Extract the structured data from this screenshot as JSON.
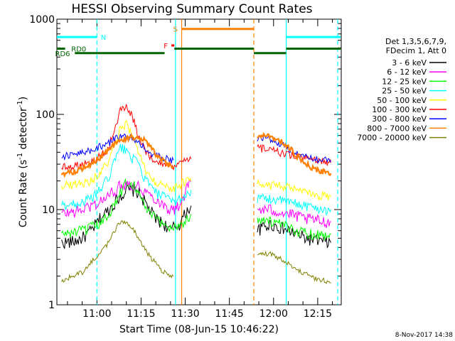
{
  "chart_data": {
    "type": "line",
    "title": "HESSI Observing Summary Count Rates",
    "xlabel": "Start Time (08-Jun-15 10:46:22)",
    "ylabel": "Count Rate (s",
    "ylabel_sup": "-1",
    "ylabel_mid": " detector",
    "ylabel_end": ")",
    "yscale": "log",
    "ylim": [
      1,
      1000
    ],
    "xlim_min": [
      46.4,
      143.0
    ],
    "x_ticks": [
      {
        "min": 60,
        "label": "11:00"
      },
      {
        "min": 75,
        "label": "11:15"
      },
      {
        "min": 90,
        "label": "11:30"
      },
      {
        "min": 105,
        "label": "11:45"
      },
      {
        "min": 120,
        "label": "12:00"
      },
      {
        "min": 135,
        "label": "12:15"
      }
    ],
    "y_ticks": [
      {
        "v": 1,
        "label": "1"
      },
      {
        "v": 10,
        "label": "10"
      },
      {
        "v": 100,
        "label": "100"
      },
      {
        "v": 1000,
        "label": "1000"
      }
    ],
    "legend_header": [
      "Det 1,3,5,6,7,9,",
      "FDecim 1, Att 0"
    ],
    "series": [
      {
        "name": "3 - 6 keV",
        "color": "#000000",
        "x": [
          48,
          52,
          55,
          58,
          61,
          64,
          67,
          70,
          73,
          75,
          77,
          80,
          83,
          85,
          86,
          88,
          89,
          90,
          91,
          92,
          114.5,
          116,
          119,
          122,
          125,
          128,
          131,
          134,
          137,
          139.5
        ],
        "y": [
          4.5,
          4.6,
          5,
          6,
          8,
          10,
          13,
          16,
          16,
          14,
          11,
          8,
          7,
          6,
          6.5,
          7,
          8,
          9,
          10,
          11,
          6,
          6.5,
          7,
          6.5,
          6,
          5.5,
          5,
          4.8,
          4.6,
          4.5
        ]
      },
      {
        "name": "6 - 12 keV",
        "color": "#ff00ff",
        "x": [
          48,
          52,
          55,
          58,
          61,
          64,
          67,
          70,
          73,
          75,
          77,
          80,
          83,
          85,
          86,
          88,
          89,
          90,
          91,
          92,
          114.5,
          116,
          119,
          122,
          125,
          128,
          131,
          134,
          137,
          139.5
        ],
        "y": [
          9,
          9.5,
          10,
          11,
          12,
          14,
          17,
          19,
          18,
          17,
          15,
          13,
          11,
          10,
          10,
          11,
          13,
          15,
          18,
          20,
          10,
          10,
          10,
          9.5,
          9,
          8.5,
          8,
          7.8,
          7.5,
          7.5
        ]
      },
      {
        "name": "12 - 25 keV",
        "color": "#00ff00",
        "x": [
          48,
          52,
          55,
          58,
          61,
          64,
          67,
          70,
          73,
          75,
          77,
          80,
          83,
          85,
          86,
          88,
          89,
          90,
          91,
          92,
          114.5,
          116,
          119,
          122,
          125,
          128,
          131,
          134,
          137,
          139.5
        ],
        "y": [
          5.5,
          5.8,
          6,
          6.5,
          7,
          9,
          13,
          20,
          18,
          13,
          10,
          8,
          7,
          6.5,
          6.5,
          7,
          7,
          7.5,
          8,
          9,
          8,
          8,
          7.5,
          7,
          6.5,
          6,
          5.8,
          5.5,
          5.5,
          5.5
        ]
      },
      {
        "name": "25 - 50 keV",
        "color": "#00ffff",
        "x": [
          48,
          52,
          55,
          58,
          61,
          64,
          66,
          68,
          70,
          72,
          74,
          76,
          78,
          80,
          82,
          84,
          86,
          88,
          89,
          90,
          91,
          92,
          114.5,
          116,
          119,
          122,
          125,
          128,
          131,
          134,
          137,
          139.5
        ],
        "y": [
          11,
          11.5,
          12,
          13,
          16,
          22,
          32,
          45,
          42,
          35,
          30,
          22,
          18,
          15,
          14,
          13,
          12,
          13,
          13,
          14,
          15,
          16,
          13,
          13,
          13,
          12.5,
          12,
          11.5,
          11,
          10.5,
          10,
          10
        ]
      },
      {
        "name": "50 - 100 keV",
        "color": "#ffff00",
        "x": [
          48,
          52,
          55,
          58,
          61,
          64,
          66,
          68,
          70,
          72,
          74,
          76,
          78,
          80,
          82,
          84,
          86,
          88,
          89,
          90,
          91,
          92,
          114.5,
          116,
          119,
          122,
          125,
          128,
          131,
          134,
          137,
          139.5
        ],
        "y": [
          18,
          18.5,
          19,
          20,
          24,
          32,
          45,
          72,
          80,
          62,
          40,
          28,
          22,
          19,
          18,
          17,
          17,
          18,
          19,
          20,
          20,
          20,
          20,
          19,
          18,
          17.5,
          17,
          16,
          15,
          14,
          14,
          13.5
        ]
      },
      {
        "name": "100 - 300 keV",
        "color": "#ff0000",
        "x": [
          48,
          52,
          55,
          58,
          61,
          64,
          66,
          68,
          70,
          72,
          74,
          76,
          78,
          80,
          82,
          84,
          86,
          88,
          89,
          90,
          91,
          92,
          114.5,
          116,
          119,
          122,
          125,
          128,
          131,
          134,
          137,
          139.5
        ],
        "y": [
          28,
          29,
          30,
          32,
          36,
          45,
          70,
          110,
          125,
          95,
          62,
          45,
          36,
          32,
          30,
          29,
          28,
          30,
          31,
          32,
          33,
          34,
          45,
          44,
          42,
          40,
          38,
          36,
          34,
          33,
          32,
          31
        ]
      },
      {
        "name": "300 - 800 keV",
        "color": "#0000ff",
        "x": [
          48,
          52,
          55,
          58,
          61,
          64,
          66,
          68,
          70,
          72,
          74,
          76,
          78,
          80,
          82,
          84,
          86,
          114.5,
          116,
          119,
          122,
          125,
          128,
          131,
          134,
          137,
          139.5
        ],
        "y": [
          36,
          38,
          40,
          42,
          46,
          50,
          55,
          58,
          58,
          56,
          50,
          45,
          40,
          37,
          35,
          34,
          33,
          55,
          58,
          55,
          50,
          44,
          39,
          36,
          34,
          33,
          33
        ]
      },
      {
        "name": "800 - 7000 keV",
        "color": "#ff8000",
        "x": [
          48,
          52,
          55,
          58,
          61,
          64,
          66,
          68,
          70,
          72,
          74,
          76,
          78,
          80,
          82,
          84,
          86,
          114.5,
          116,
          119,
          122,
          125,
          128,
          131,
          134,
          137,
          139.5
        ],
        "y": [
          24,
          25,
          27,
          30,
          35,
          42,
          48,
          52,
          56,
          58,
          58,
          54,
          46,
          38,
          33,
          30,
          28,
          58,
          60,
          58,
          54,
          46,
          36,
          30,
          26,
          25,
          24
        ]
      },
      {
        "name": "7000 - 20000 keV",
        "color": "#808000",
        "x": [
          48,
          52,
          55,
          58,
          61,
          64,
          66,
          68,
          70,
          72,
          74,
          76,
          78,
          80,
          82,
          84,
          86,
          114.5,
          116,
          119,
          122,
          125,
          128,
          131,
          134,
          137,
          139.5
        ],
        "y": [
          1.8,
          2,
          2.2,
          2.8,
          3.5,
          4.5,
          6,
          7.5,
          7.5,
          6.5,
          5,
          4,
          3.2,
          2.7,
          2.3,
          2.1,
          2,
          3.3,
          3.5,
          3.4,
          3.1,
          2.7,
          2.3,
          2.1,
          1.9,
          1.8,
          1.7
        ]
      }
    ],
    "vertical_markers": [
      {
        "x": 60.0,
        "color": "#00ffff",
        "style": "dashed"
      },
      {
        "x": 86.7,
        "color": "#00ffff",
        "style": "solid"
      },
      {
        "x": 88.8,
        "color": "#ff8000",
        "style": "solid"
      },
      {
        "x": 113.3,
        "color": "#ff8000",
        "style": "dashed"
      },
      {
        "x": 124.3,
        "color": "#00ffff",
        "style": "solid"
      },
      {
        "x": 141.8,
        "color": "#00ffff",
        "style": "dashed"
      }
    ],
    "state_bars": [
      {
        "label": "N",
        "color": "#00ffff",
        "level": 650,
        "ranges": [
          [
            46.4,
            60.0
          ],
          [
            124.3,
            142.8
          ]
        ],
        "label_x": 61.3
      },
      {
        "label": "S",
        "color": "#ff8000",
        "level": 790,
        "ranges": [
          [
            88.8,
            113.3
          ]
        ],
        "label_x": 85.9
      },
      {
        "label": "F",
        "color": "#ff0000",
        "level": 530,
        "ranges": [
          [
            85.3,
            86.3
          ]
        ],
        "label_x": 82.7
      },
      {
        "label": "RD0",
        "color": "#006400",
        "level": 490,
        "ranges": [
          [
            46.4,
            49.2
          ],
          [
            86.3,
            113.3
          ],
          [
            124.3,
            142.8
          ]
        ],
        "label_x": 51.3
      },
      {
        "label": "RD6",
        "color": "#006400",
        "level": 440,
        "ranges": [
          [
            52.5,
            83.0
          ],
          [
            113.3,
            124.3
          ]
        ],
        "label_x": 45.8
      }
    ]
  },
  "footer": {
    "timestamp": "8-Nov-2017 14:38"
  }
}
